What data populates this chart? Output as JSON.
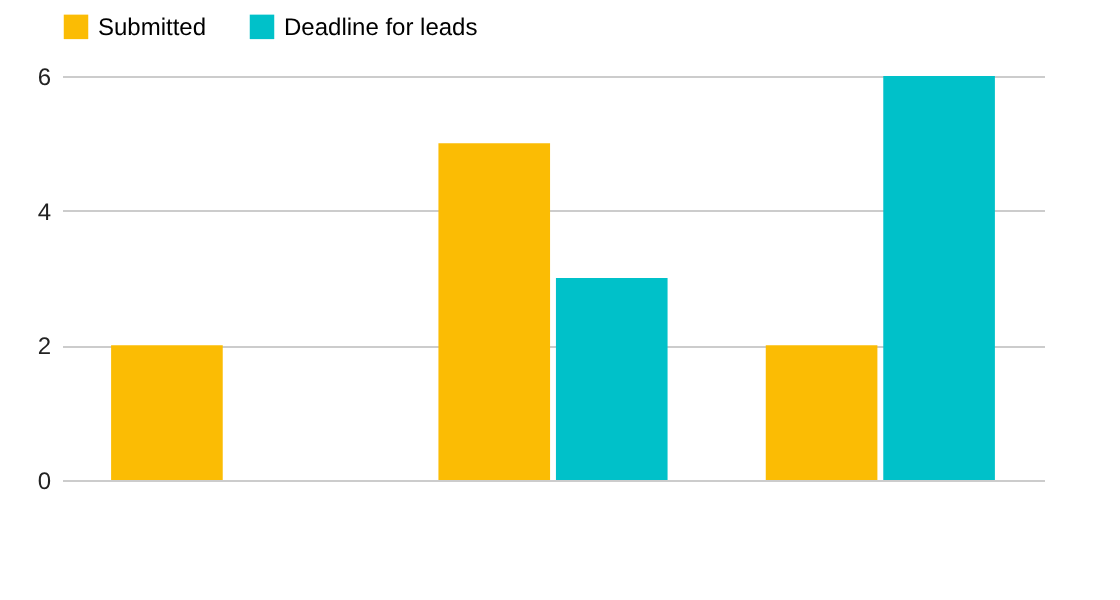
{
  "chart_data": {
    "type": "bar",
    "categories": [
      null,
      null,
      null
    ],
    "series": [
      {
        "name": "Submitted",
        "color": "#fbbc04",
        "values": [
          2,
          5,
          2
        ]
      },
      {
        "name": "Deadline for leads",
        "color": "#00c1c9",
        "values": [
          null,
          3,
          6
        ]
      }
    ],
    "ylim": [
      0,
      6
    ],
    "yticks": [
      0,
      2,
      4,
      6
    ],
    "grid": "y",
    "legend": "top",
    "tick_labels": "y"
  }
}
